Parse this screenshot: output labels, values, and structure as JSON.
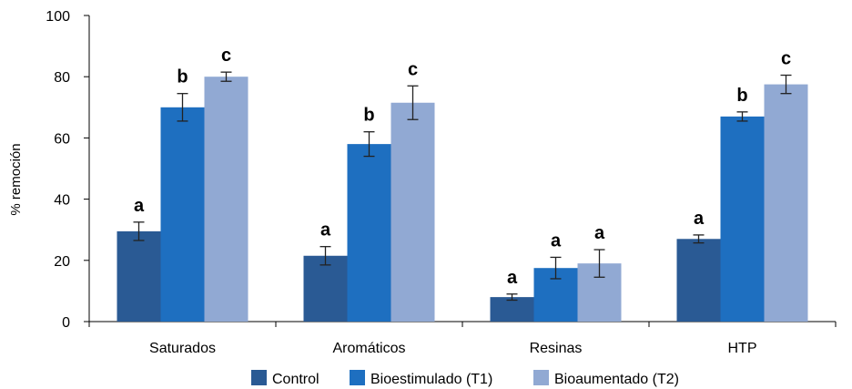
{
  "chart_data": {
    "type": "bar",
    "ylabel": "% remoción",
    "ylim": [
      0,
      100
    ],
    "yticks": [
      0,
      20,
      40,
      60,
      80,
      100
    ],
    "categories": [
      "Saturados",
      "Aromáticos",
      "Resinas",
      "HTP"
    ],
    "series": [
      {
        "name": "Control",
        "color": "#2a5a94",
        "values": [
          29.5,
          21.5,
          8,
          27
        ],
        "errors": [
          3,
          3,
          1,
          1.3
        ],
        "labels": [
          "a",
          "a",
          "a",
          "a"
        ]
      },
      {
        "name": "Bioestimulado (T1)",
        "color": "#1e6fc0",
        "values": [
          70,
          58,
          17.5,
          67
        ],
        "errors": [
          4.5,
          4,
          3.5,
          1.5
        ],
        "labels": [
          "b",
          "b",
          "a",
          "b"
        ]
      },
      {
        "name": "Bioaumentado (T2)",
        "color": "#91a9d3",
        "values": [
          80,
          71.5,
          19,
          77.5
        ],
        "errors": [
          1.5,
          5.5,
          4.5,
          3
        ],
        "labels": [
          "c",
          "c",
          "a",
          "c"
        ]
      }
    ],
    "legend_position": "bottom-center",
    "grid": false
  }
}
